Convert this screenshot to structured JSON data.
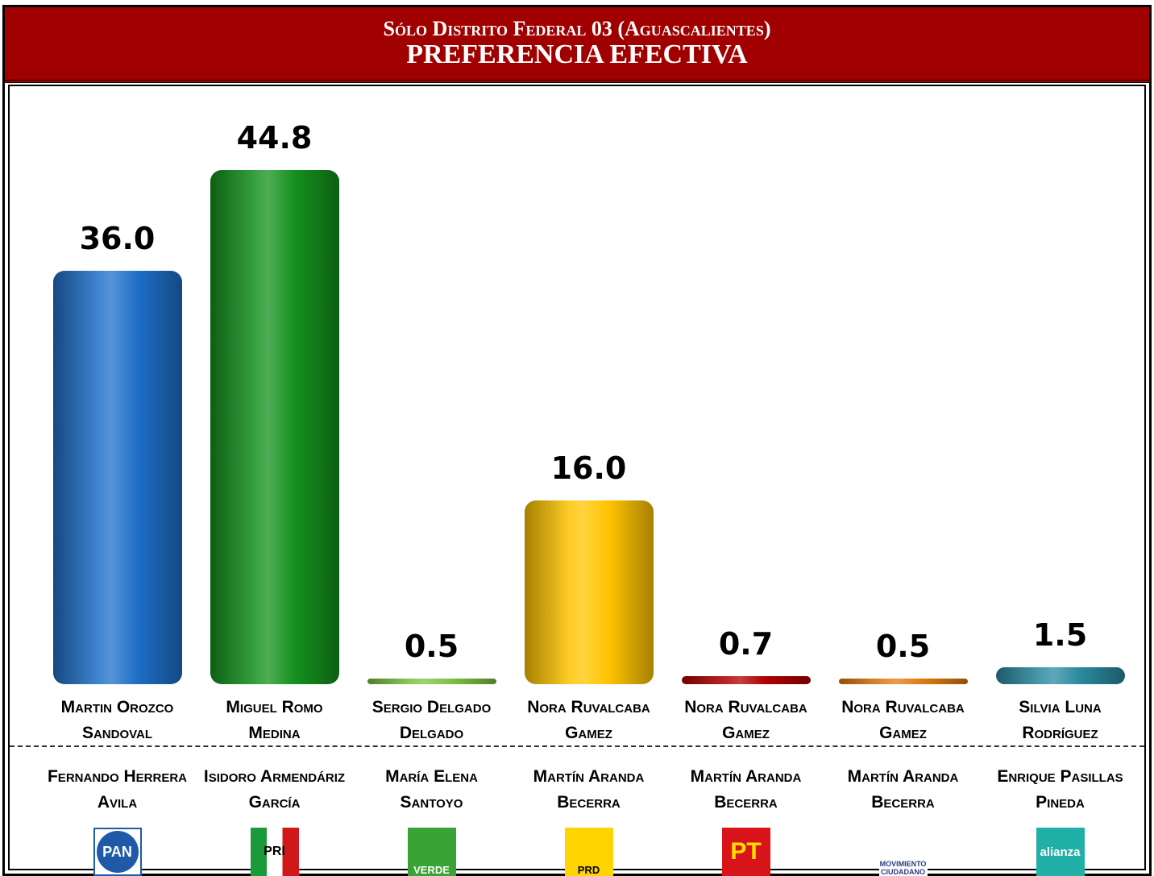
{
  "chart_data": {
    "type": "bar",
    "title": "Sólo Distrito Federal 03 (Aguascalientes)",
    "subtitle": "PREFERENCIA EFECTIVA",
    "categories": [
      "Martin Orozco Sandoval",
      "Miguel Romo Medina",
      "Sergio Delgado Delgado",
      "Nora Ruvalcaba Gamez",
      "Nora Ruvalcaba Gamez",
      "Nora Ruvalcaba Gamez",
      "Silvia Luna Rodríguez"
    ],
    "values": [
      36.0,
      44.8,
      0.5,
      16.0,
      0.7,
      0.5,
      1.5
    ],
    "value_labels": [
      "36.0",
      "44.8",
      "0.5",
      "16.0",
      "0.7",
      "0.5",
      "1.5"
    ],
    "colors": [
      "#1e6fc8",
      "#14911e",
      "#7cc243",
      "#ffc400",
      "#b00000",
      "#e07a10",
      "#2a8aa0"
    ],
    "substitutes": [
      "Fernando Herrera Avila",
      "Isidoro Armendáriz García",
      "María Elena Santoyo",
      "Martín Aranda Becerra",
      "Martín Aranda Becerra",
      "Martín Aranda Becerra",
      "Enrique Pasillas Pineda"
    ],
    "parties": [
      "PAN",
      "PRI",
      "VERDE",
      "PRD",
      "PT",
      "MOVIMIENTO CIUDADANO",
      "alianza"
    ]
  }
}
